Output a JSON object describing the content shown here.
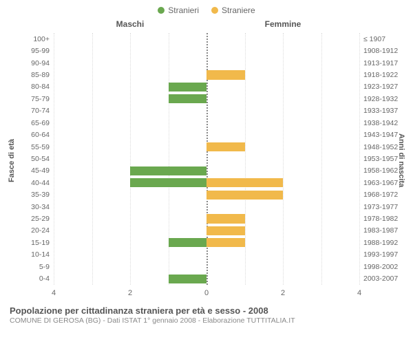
{
  "chart": {
    "type": "population-pyramid",
    "legend": [
      {
        "label": "Stranieri",
        "color": "#6aa84f"
      },
      {
        "label": "Straniere",
        "color": "#f1b94b"
      }
    ],
    "col_left_title": "Maschi",
    "col_right_title": "Femmine",
    "y_left_axis_label": "Fasce di età",
    "y_right_axis_label": "Anni di nascita",
    "x_max": 4,
    "x_ticks": [
      4,
      2,
      0,
      2,
      4
    ],
    "grid_color": "rgba(150,150,150,0.35)",
    "background_color": "#ffffff",
    "rows": [
      {
        "age": "100+",
        "birth": "≤ 1907",
        "m": 0,
        "f": 0
      },
      {
        "age": "95-99",
        "birth": "1908-1912",
        "m": 0,
        "f": 0
      },
      {
        "age": "90-94",
        "birth": "1913-1917",
        "m": 0,
        "f": 0
      },
      {
        "age": "85-89",
        "birth": "1918-1922",
        "m": 0,
        "f": 1
      },
      {
        "age": "80-84",
        "birth": "1923-1927",
        "m": 1,
        "f": 0
      },
      {
        "age": "75-79",
        "birth": "1928-1932",
        "m": 1,
        "f": 0
      },
      {
        "age": "70-74",
        "birth": "1933-1937",
        "m": 0,
        "f": 0
      },
      {
        "age": "65-69",
        "birth": "1938-1942",
        "m": 0,
        "f": 0
      },
      {
        "age": "60-64",
        "birth": "1943-1947",
        "m": 0,
        "f": 0
      },
      {
        "age": "55-59",
        "birth": "1948-1952",
        "m": 0,
        "f": 1
      },
      {
        "age": "50-54",
        "birth": "1953-1957",
        "m": 0,
        "f": 0
      },
      {
        "age": "45-49",
        "birth": "1958-1962",
        "m": 2,
        "f": 0
      },
      {
        "age": "40-44",
        "birth": "1963-1967",
        "m": 2,
        "f": 2
      },
      {
        "age": "35-39",
        "birth": "1968-1972",
        "m": 0,
        "f": 2
      },
      {
        "age": "30-34",
        "birth": "1973-1977",
        "m": 0,
        "f": 0
      },
      {
        "age": "25-29",
        "birth": "1978-1982",
        "m": 0,
        "f": 1
      },
      {
        "age": "20-24",
        "birth": "1983-1987",
        "m": 0,
        "f": 1
      },
      {
        "age": "15-19",
        "birth": "1988-1992",
        "m": 1,
        "f": 1
      },
      {
        "age": "10-14",
        "birth": "1993-1997",
        "m": 0,
        "f": 0
      },
      {
        "age": "5-9",
        "birth": "1998-2002",
        "m": 0,
        "f": 0
      },
      {
        "age": "0-4",
        "birth": "2003-2007",
        "m": 1,
        "f": 0
      }
    ]
  },
  "footer": {
    "title": "Popolazione per cittadinanza straniera per età e sesso - 2008",
    "subtitle": "COMUNE DI GEROSA (BG) - Dati ISTAT 1° gennaio 2008 - Elaborazione TUTTITALIA.IT"
  }
}
